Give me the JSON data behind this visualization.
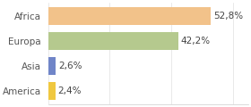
{
  "categories": [
    "Africa",
    "Europa",
    "Asia",
    "America"
  ],
  "values": [
    52.8,
    42.2,
    2.6,
    2.4
  ],
  "bar_colors": [
    "#f2c28a",
    "#b5c98e",
    "#7085c8",
    "#f0c840"
  ],
  "labels": [
    "52,8%",
    "42,2%",
    "2,6%",
    "2,4%"
  ],
  "xlim": [
    0,
    65
  ],
  "background_color": "#ffffff",
  "label_fontsize": 7.5,
  "tick_fontsize": 7.5,
  "figsize": [
    2.8,
    1.2
  ],
  "dpi": 100
}
